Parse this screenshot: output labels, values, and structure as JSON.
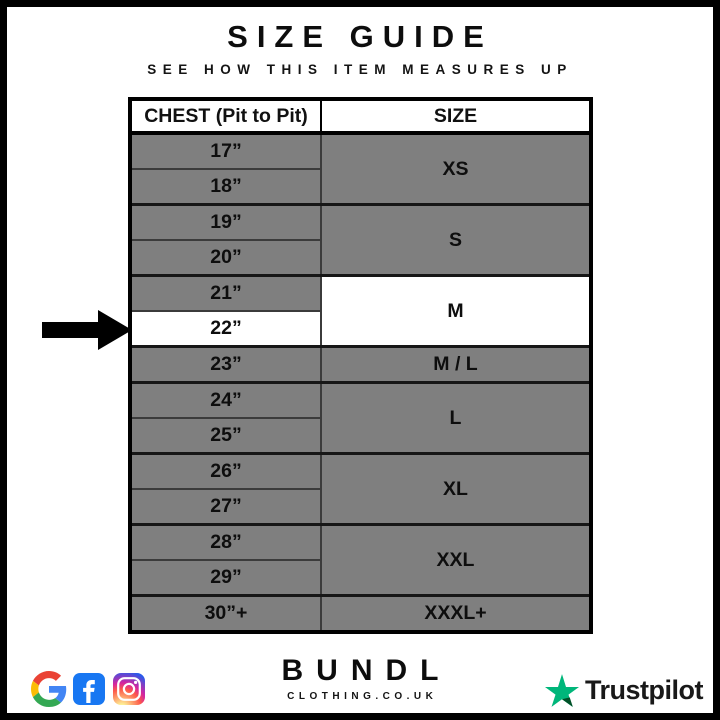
{
  "header": {
    "title": "SIZE GUIDE",
    "subtitle": "SEE HOW THIS ITEM MEASURES UP"
  },
  "table": {
    "columns": [
      "CHEST (Pit to Pit)",
      "SIZE"
    ],
    "groups": [
      {
        "size": "XS",
        "chest": [
          "17”",
          "18”"
        ],
        "highlighted": false
      },
      {
        "size": "S",
        "chest": [
          "19”",
          "20”"
        ],
        "highlighted": false
      },
      {
        "size": "M",
        "chest": [
          "21”",
          "22”"
        ],
        "highlighted": true,
        "highlight_chest": "22”"
      },
      {
        "size": "M / L",
        "chest": [
          "23”"
        ],
        "highlighted": false
      },
      {
        "size": "L",
        "chest": [
          "24”",
          "25”"
        ],
        "highlighted": false
      },
      {
        "size": "XL",
        "chest": [
          "26”",
          "27”"
        ],
        "highlighted": false
      },
      {
        "size": "XXL",
        "chest": [
          "28”",
          "29”"
        ],
        "highlighted": false
      },
      {
        "size": "XXXL+",
        "chest": [
          "30”+"
        ],
        "highlighted": false
      }
    ],
    "colors": {
      "row_grey": "#7f7f7f",
      "highlight": "#ffffff",
      "inner_border": "#3b3b3b",
      "outer_border": "#000000"
    }
  },
  "arrow": {
    "points_at": "22”",
    "color": "#000000"
  },
  "footer": {
    "icons": [
      "google-icon",
      "facebook-icon",
      "instagram-icon"
    ],
    "brand_name": "BUNDL",
    "brand_domain": "CLOTHING.CO.UK",
    "trustpilot_label": "Trustpilot",
    "colors": {
      "facebook_blue": "#1877F2",
      "trustpilot_green": "#00B67A",
      "trustpilot_dark_green": "#005128"
    }
  }
}
